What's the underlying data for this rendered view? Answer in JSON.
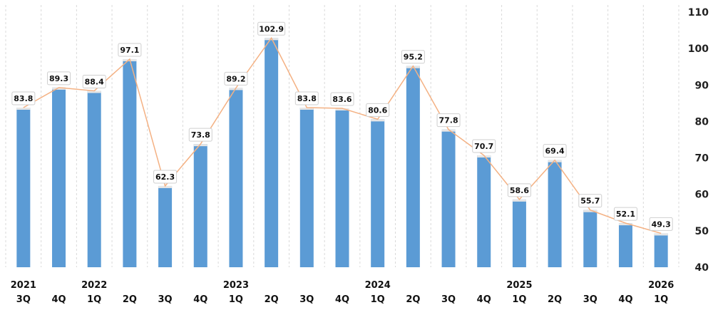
{
  "chart_data": {
    "type": "bar",
    "categories": [
      "2021 3Q",
      "4Q",
      "2022 1Q",
      "2Q",
      "3Q",
      "4Q",
      "2023 1Q",
      "2Q",
      "3Q",
      "4Q",
      "2024 1Q",
      "2Q",
      "3Q",
      "4Q",
      "2025 1Q",
      "2Q",
      "3Q",
      "4Q",
      "2026 1Q"
    ],
    "x_labels": [
      {
        "year": "2021",
        "quarter": "3Q"
      },
      {
        "year": "",
        "quarter": "4Q"
      },
      {
        "year": "2022",
        "quarter": "1Q"
      },
      {
        "year": "",
        "quarter": "2Q"
      },
      {
        "year": "",
        "quarter": "3Q"
      },
      {
        "year": "",
        "quarter": "4Q"
      },
      {
        "year": "2023",
        "quarter": "1Q"
      },
      {
        "year": "",
        "quarter": "2Q"
      },
      {
        "year": "",
        "quarter": "3Q"
      },
      {
        "year": "",
        "quarter": "4Q"
      },
      {
        "year": "2024",
        "quarter": "1Q"
      },
      {
        "year": "",
        "quarter": "2Q"
      },
      {
        "year": "",
        "quarter": "3Q"
      },
      {
        "year": "",
        "quarter": "4Q"
      },
      {
        "year": "2025",
        "quarter": "1Q"
      },
      {
        "year": "",
        "quarter": "2Q"
      },
      {
        "year": "",
        "quarter": "3Q"
      },
      {
        "year": "",
        "quarter": "4Q"
      },
      {
        "year": "2026",
        "quarter": "1Q"
      }
    ],
    "values": [
      83.8,
      89.3,
      88.4,
      97.1,
      62.3,
      73.8,
      89.2,
      102.9,
      83.8,
      83.6,
      80.6,
      95.2,
      77.8,
      70.7,
      58.6,
      69.4,
      55.7,
      52.1,
      49.3
    ],
    "data_labels": [
      "83.8",
      "89.3",
      "88.4",
      "97.1",
      "62.3",
      "73.8",
      "89.2",
      "102.9",
      "83.8",
      "83.6",
      "80.6",
      "95.2",
      "77.8",
      "70.7",
      "58.6",
      "69.4",
      "55.7",
      "52.1",
      "49.3"
    ],
    "overlay": "line",
    "ylim": [
      40,
      110
    ],
    "yticks": [
      40,
      50,
      60,
      70,
      80,
      90,
      100,
      110
    ],
    "y_axis_side": "right",
    "grid": "vertical dashed",
    "title": "",
    "xlabel": "",
    "ylabel": "",
    "colors": {
      "bar": "#5b9bd5",
      "bar_cap": "#e6e6e6",
      "line": "#f4b183",
      "grid": "#d9d9d9",
      "label_box_border": "#cfcfcf"
    }
  }
}
